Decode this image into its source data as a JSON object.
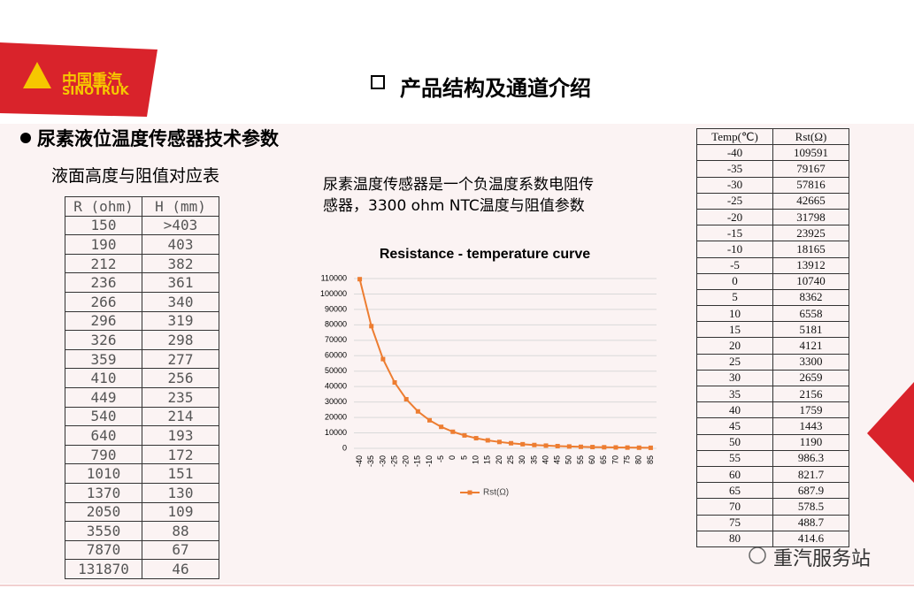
{
  "logo": {
    "cn": "中国重汽",
    "en": "SINOTRUK"
  },
  "header": {
    "title": "产品结构及通道介绍"
  },
  "section": {
    "title": "尿素液位温度传感器技术参数"
  },
  "left_table": {
    "caption": "液面高度与阻值对应表",
    "header": [
      "R (ohm)",
      "H (mm)"
    ],
    "rows": [
      [
        "150",
        ">403"
      ],
      [
        "190",
        "403"
      ],
      [
        "212",
        "382"
      ],
      [
        "236",
        "361"
      ],
      [
        "266",
        "340"
      ],
      [
        "296",
        "319"
      ],
      [
        "326",
        "298"
      ],
      [
        "359",
        "277"
      ],
      [
        "410",
        "256"
      ],
      [
        "449",
        "235"
      ],
      [
        "540",
        "214"
      ],
      [
        "640",
        "193"
      ],
      [
        "790",
        "172"
      ],
      [
        "1010",
        "151"
      ],
      [
        "1370",
        "130"
      ],
      [
        "2050",
        "109"
      ],
      [
        "3550",
        "88"
      ],
      [
        "7870",
        "67"
      ],
      [
        "131870",
        "46"
      ]
    ]
  },
  "description": {
    "line1": "尿素温度传感器是一个负温度系数电阻传",
    "line2": "感器，3300 ohm NTC温度与阻值参数"
  },
  "chart_data": {
    "type": "line",
    "title": "Resistance - temperature curve",
    "categories": [
      "-40",
      "-35",
      "-30",
      "-25",
      "-20",
      "-15",
      "-10",
      "-5",
      "0",
      "5",
      "10",
      "15",
      "20",
      "25",
      "30",
      "35",
      "40",
      "45",
      "50",
      "55",
      "60",
      "65",
      "70",
      "75",
      "80",
      "85"
    ],
    "series": [
      {
        "name": "Rst(Ω)",
        "color": "#ed7d31",
        "values": [
          109591,
          79167,
          57816,
          42665,
          31798,
          23925,
          18165,
          13912,
          10740,
          8362,
          6558,
          5181,
          4121,
          3300,
          2659,
          2156,
          1759,
          1443,
          1190,
          986.3,
          821.7,
          687.9,
          578.5,
          488.7,
          414.6,
          353
        ]
      }
    ],
    "ylim": [
      0,
      110000
    ],
    "yticks": [
      0,
      10000,
      20000,
      30000,
      40000,
      50000,
      60000,
      70000,
      80000,
      90000,
      100000,
      110000
    ],
    "grid": true,
    "legend": "bottom"
  },
  "right_table": {
    "header": [
      "Temp(℃)",
      "Rst(Ω)"
    ],
    "rows": [
      [
        "-40",
        "109591"
      ],
      [
        "-35",
        "79167"
      ],
      [
        "-30",
        "57816"
      ],
      [
        "-25",
        "42665"
      ],
      [
        "-20",
        "31798"
      ],
      [
        "-15",
        "23925"
      ],
      [
        "-10",
        "18165"
      ],
      [
        "-5",
        "13912"
      ],
      [
        "0",
        "10740"
      ],
      [
        "5",
        "8362"
      ],
      [
        "10",
        "6558"
      ],
      [
        "15",
        "5181"
      ],
      [
        "20",
        "4121"
      ],
      [
        "25",
        "3300"
      ],
      [
        "30",
        "2659"
      ],
      [
        "35",
        "2156"
      ],
      [
        "40",
        "1759"
      ],
      [
        "45",
        "1443"
      ],
      [
        "50",
        "1190"
      ],
      [
        "55",
        "986.3"
      ],
      [
        "60",
        "821.7"
      ],
      [
        "65",
        "687.9"
      ],
      [
        "70",
        "578.5"
      ],
      [
        "75",
        "488.7"
      ],
      [
        "80",
        "414.6"
      ]
    ]
  },
  "watermark": {
    "text": "重汽服务站"
  }
}
